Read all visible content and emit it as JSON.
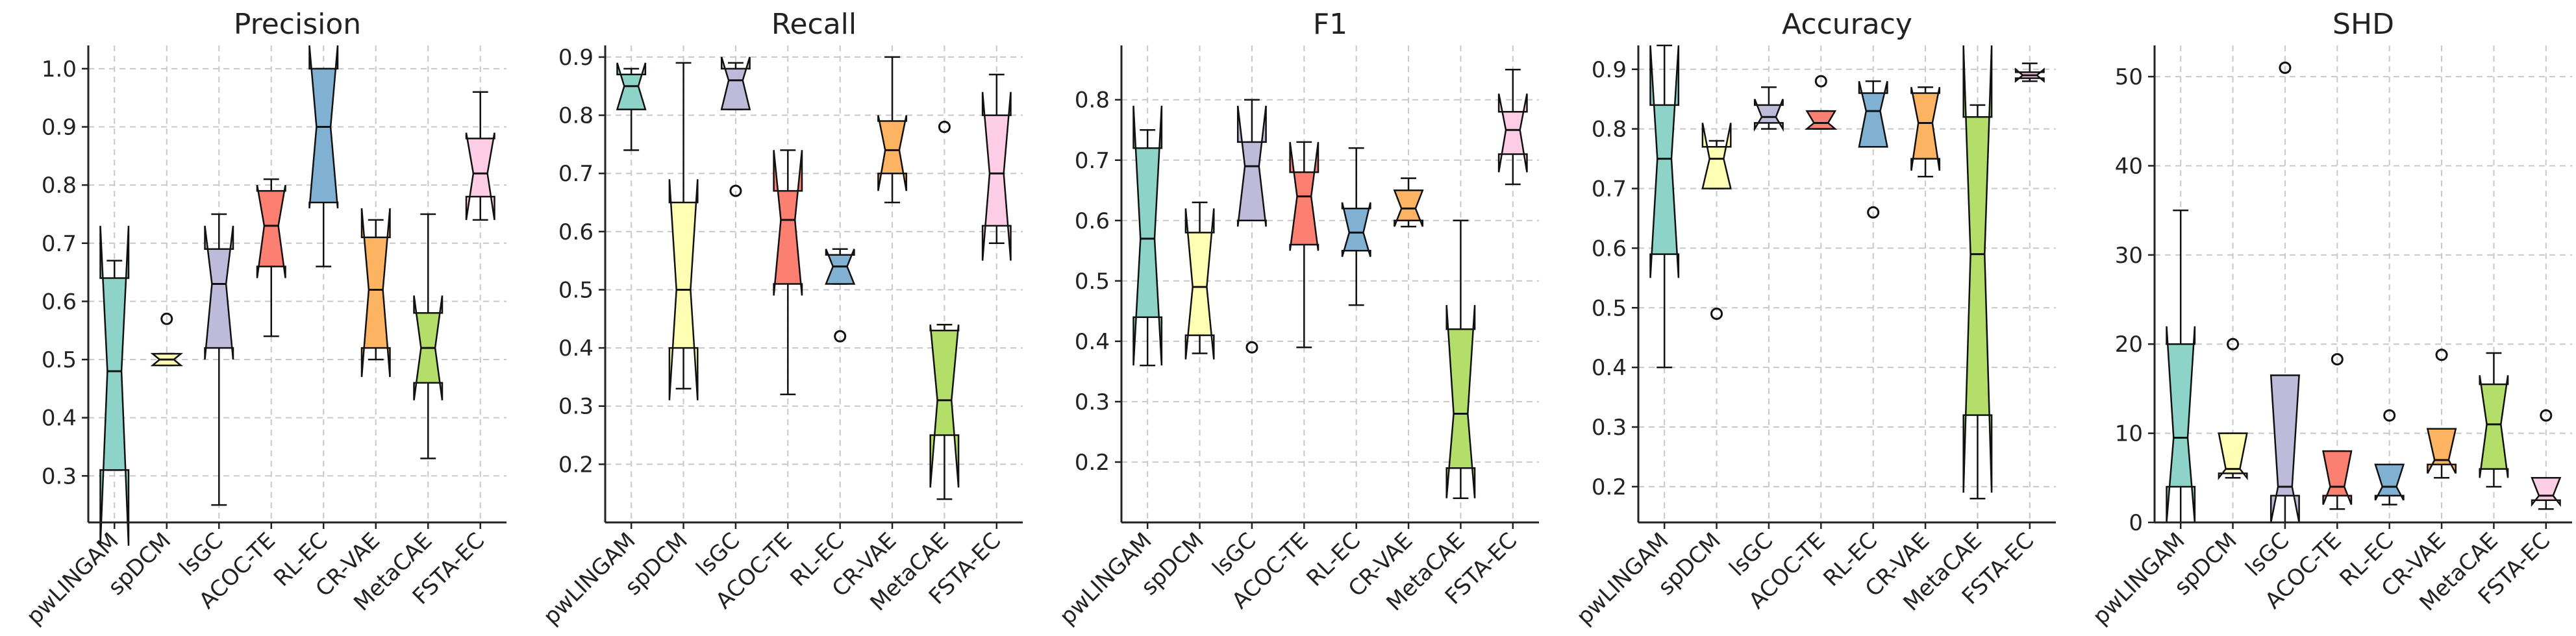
{
  "colors": {
    "pwLINGAM": "#8dd3c7",
    "spDCM": "#ffffb3",
    "lsGC": "#bebada",
    "ACOC-TE": "#fb8072",
    "RL-EC": "#80b1d3",
    "CR-VAE": "#fdb462",
    "MetaCAE": "#b3de69",
    "FSTA-EC": "#fccde5"
  },
  "chart_data": [
    {
      "type": "box",
      "title": "Precision",
      "categories": [
        "pwLINGAM",
        "spDCM",
        "lsGC",
        "ACOC-TE",
        "RL-EC",
        "CR-VAE",
        "MetaCAE",
        "FSTA-EC"
      ],
      "ylim": [
        0.22,
        1.04
      ],
      "yticks": [
        0.3,
        0.4,
        0.5,
        0.6,
        0.7,
        0.8,
        0.9,
        1.0
      ],
      "ytick_labels": [
        "0.3",
        "0.4",
        "0.5",
        "0.6",
        "0.7",
        "0.8",
        "0.9",
        "1.0"
      ],
      "grid": true,
      "boxes": [
        {
          "whislo": 0.31,
          "q1": 0.31,
          "med": 0.48,
          "q3": 0.64,
          "whishi": 0.67,
          "notch_lo": 0.18,
          "notch_hi": 0.73,
          "fliers": []
        },
        {
          "whislo": 0.49,
          "q1": 0.49,
          "med": 0.5,
          "q3": 0.51,
          "whishi": 0.51,
          "notch_lo": 0.49,
          "notch_hi": 0.51,
          "fliers": [
            0.57
          ]
        },
        {
          "whislo": 0.25,
          "q1": 0.52,
          "med": 0.63,
          "q3": 0.69,
          "whishi": 0.75,
          "notch_lo": 0.5,
          "notch_hi": 0.73,
          "fliers": []
        },
        {
          "whislo": 0.54,
          "q1": 0.66,
          "med": 0.73,
          "q3": 0.79,
          "whishi": 0.81,
          "notch_lo": 0.64,
          "notch_hi": 0.8,
          "fliers": []
        },
        {
          "whislo": 0.66,
          "q1": 0.77,
          "med": 0.9,
          "q3": 1.0,
          "whishi": 1.0,
          "notch_lo": 0.76,
          "notch_hi": 1.04,
          "fliers": []
        },
        {
          "whislo": 0.5,
          "q1": 0.52,
          "med": 0.62,
          "q3": 0.71,
          "whishi": 0.74,
          "notch_lo": 0.47,
          "notch_hi": 0.76,
          "fliers": []
        },
        {
          "whislo": 0.33,
          "q1": 0.46,
          "med": 0.52,
          "q3": 0.58,
          "whishi": 0.75,
          "notch_lo": 0.43,
          "notch_hi": 0.61,
          "fliers": []
        },
        {
          "whislo": 0.74,
          "q1": 0.78,
          "med": 0.82,
          "q3": 0.88,
          "whishi": 0.96,
          "notch_lo": 0.74,
          "notch_hi": 0.89,
          "fliers": []
        }
      ]
    },
    {
      "type": "box",
      "title": "Recall",
      "categories": [
        "pwLINGAM",
        "spDCM",
        "lsGC",
        "ACOC-TE",
        "RL-EC",
        "CR-VAE",
        "MetaCAE",
        "FSTA-EC"
      ],
      "ylim": [
        0.1,
        0.92
      ],
      "yticks": [
        0.2,
        0.3,
        0.4,
        0.5,
        0.6,
        0.7,
        0.8,
        0.9
      ],
      "ytick_labels": [
        "0.2",
        "0.3",
        "0.4",
        "0.5",
        "0.6",
        "0.7",
        "0.8",
        "0.9"
      ],
      "grid": true,
      "boxes": [
        {
          "whislo": 0.74,
          "q1": 0.81,
          "med": 0.85,
          "q3": 0.87,
          "whishi": 0.88,
          "notch_lo": 0.81,
          "notch_hi": 0.89,
          "fliers": []
        },
        {
          "whislo": 0.33,
          "q1": 0.4,
          "med": 0.5,
          "q3": 0.65,
          "whishi": 0.89,
          "notch_lo": 0.31,
          "notch_hi": 0.69,
          "fliers": []
        },
        {
          "whislo": 0.81,
          "q1": 0.81,
          "med": 0.86,
          "q3": 0.88,
          "whishi": 0.89,
          "notch_lo": 0.81,
          "notch_hi": 0.9,
          "fliers": [
            0.67
          ]
        },
        {
          "whislo": 0.32,
          "q1": 0.51,
          "med": 0.62,
          "q3": 0.67,
          "whishi": 0.74,
          "notch_lo": 0.49,
          "notch_hi": 0.74,
          "fliers": []
        },
        {
          "whislo": 0.51,
          "q1": 0.51,
          "med": 0.54,
          "q3": 0.56,
          "whishi": 0.57,
          "notch_lo": 0.51,
          "notch_hi": 0.57,
          "fliers": [
            0.42
          ]
        },
        {
          "whislo": 0.65,
          "q1": 0.7,
          "med": 0.74,
          "q3": 0.79,
          "whishi": 0.9,
          "notch_lo": 0.67,
          "notch_hi": 0.8,
          "fliers": []
        },
        {
          "whislo": 0.14,
          "q1": 0.25,
          "med": 0.31,
          "q3": 0.43,
          "whishi": 0.44,
          "notch_lo": 0.16,
          "notch_hi": 0.44,
          "fliers": [
            0.78
          ]
        },
        {
          "whislo": 0.58,
          "q1": 0.61,
          "med": 0.7,
          "q3": 0.8,
          "whishi": 0.87,
          "notch_lo": 0.55,
          "notch_hi": 0.84,
          "fliers": []
        }
      ]
    },
    {
      "type": "box",
      "title": "F1",
      "categories": [
        "pwLINGAM",
        "spDCM",
        "lsGC",
        "ACOC-TE",
        "RL-EC",
        "CR-VAE",
        "MetaCAE",
        "FSTA-EC"
      ],
      "ylim": [
        0.1,
        0.89
      ],
      "yticks": [
        0.2,
        0.3,
        0.4,
        0.5,
        0.6,
        0.7,
        0.8
      ],
      "ytick_labels": [
        "0.2",
        "0.3",
        "0.4",
        "0.5",
        "0.6",
        "0.7",
        "0.8"
      ],
      "grid": true,
      "boxes": [
        {
          "whislo": 0.36,
          "q1": 0.44,
          "med": 0.57,
          "q3": 0.72,
          "whishi": 0.75,
          "notch_lo": 0.36,
          "notch_hi": 0.79,
          "fliers": []
        },
        {
          "whislo": 0.38,
          "q1": 0.41,
          "med": 0.49,
          "q3": 0.58,
          "whishi": 0.63,
          "notch_lo": 0.37,
          "notch_hi": 0.62,
          "fliers": []
        },
        {
          "whislo": 0.6,
          "q1": 0.6,
          "med": 0.69,
          "q3": 0.73,
          "whishi": 0.8,
          "notch_lo": 0.59,
          "notch_hi": 0.79,
          "fliers": [
            0.39
          ]
        },
        {
          "whislo": 0.39,
          "q1": 0.56,
          "med": 0.64,
          "q3": 0.68,
          "whishi": 0.73,
          "notch_lo": 0.55,
          "notch_hi": 0.73,
          "fliers": []
        },
        {
          "whislo": 0.46,
          "q1": 0.55,
          "med": 0.58,
          "q3": 0.62,
          "whishi": 0.72,
          "notch_lo": 0.54,
          "notch_hi": 0.63,
          "fliers": []
        },
        {
          "whislo": 0.59,
          "q1": 0.6,
          "med": 0.62,
          "q3": 0.65,
          "whishi": 0.67,
          "notch_lo": 0.59,
          "notch_hi": 0.65,
          "fliers": []
        },
        {
          "whislo": 0.14,
          "q1": 0.19,
          "med": 0.28,
          "q3": 0.42,
          "whishi": 0.6,
          "notch_lo": 0.14,
          "notch_hi": 0.46,
          "fliers": []
        },
        {
          "whislo": 0.66,
          "q1": 0.71,
          "med": 0.75,
          "q3": 0.78,
          "whishi": 0.85,
          "notch_lo": 0.68,
          "notch_hi": 0.81,
          "fliers": []
        }
      ]
    },
    {
      "type": "box",
      "title": "Accuracy",
      "categories": [
        "pwLINGAM",
        "spDCM",
        "lsGC",
        "ACOC-TE",
        "RL-EC",
        "CR-VAE",
        "MetaCAE",
        "FSTA-EC"
      ],
      "ylim": [
        0.14,
        0.94
      ],
      "yticks": [
        0.2,
        0.3,
        0.4,
        0.5,
        0.6,
        0.7,
        0.8,
        0.9
      ],
      "ytick_labels": [
        "0.2",
        "0.3",
        "0.4",
        "0.5",
        "0.6",
        "0.7",
        "0.8",
        "0.9"
      ],
      "grid": true,
      "boxes": [
        {
          "whislo": 0.4,
          "q1": 0.59,
          "med": 0.75,
          "q3": 0.84,
          "whishi": 0.94,
          "notch_lo": 0.55,
          "notch_hi": 0.94,
          "fliers": []
        },
        {
          "whislo": 0.7,
          "q1": 0.7,
          "med": 0.75,
          "q3": 0.77,
          "whishi": 0.78,
          "notch_lo": 0.7,
          "notch_hi": 0.81,
          "fliers": [
            0.49
          ]
        },
        {
          "whislo": 0.8,
          "q1": 0.81,
          "med": 0.82,
          "q3": 0.84,
          "whishi": 0.87,
          "notch_lo": 0.8,
          "notch_hi": 0.85,
          "fliers": []
        },
        {
          "whislo": 0.8,
          "q1": 0.8,
          "med": 0.81,
          "q3": 0.83,
          "whishi": 0.83,
          "notch_lo": 0.8,
          "notch_hi": 0.83,
          "fliers": [
            0.88
          ]
        },
        {
          "whislo": 0.77,
          "q1": 0.77,
          "med": 0.83,
          "q3": 0.86,
          "whishi": 0.88,
          "notch_lo": 0.77,
          "notch_hi": 0.88,
          "fliers": [
            0.66
          ]
        },
        {
          "whislo": 0.72,
          "q1": 0.75,
          "med": 0.81,
          "q3": 0.86,
          "whishi": 0.87,
          "notch_lo": 0.73,
          "notch_hi": 0.87,
          "fliers": []
        },
        {
          "whislo": 0.18,
          "q1": 0.32,
          "med": 0.59,
          "q3": 0.82,
          "whishi": 0.84,
          "notch_lo": 0.19,
          "notch_hi": 0.94,
          "fliers": []
        },
        {
          "whislo": 0.88,
          "q1": 0.885,
          "med": 0.89,
          "q3": 0.895,
          "whishi": 0.91,
          "notch_lo": 0.88,
          "notch_hi": 0.9,
          "fliers": []
        }
      ]
    },
    {
      "type": "box",
      "title": "SHD",
      "categories": [
        "pwLINGAM",
        "spDCM",
        "lsGC",
        "ACOC-TE",
        "RL-EC",
        "CR-VAE",
        "MetaCAE",
        "FSTA-EC"
      ],
      "ylim": [
        0,
        53.5
      ],
      "yticks": [
        0,
        10,
        20,
        30,
        40,
        50
      ],
      "ytick_labels": [
        "0",
        "10",
        "20",
        "30",
        "40",
        "50"
      ],
      "grid": true,
      "boxes": [
        {
          "whislo": 0,
          "q1": 4,
          "med": 9.5,
          "q3": 20,
          "whishi": 35,
          "notch_lo": 0,
          "notch_hi": 22,
          "fliers": []
        },
        {
          "whislo": 5,
          "q1": 5.5,
          "med": 6,
          "q3": 10,
          "whishi": 10,
          "notch_lo": 5,
          "notch_hi": 10,
          "fliers": [
            20
          ]
        },
        {
          "whislo": 0,
          "q1": 3,
          "med": 4,
          "q3": 16.5,
          "whishi": 16.5,
          "notch_lo": 0,
          "notch_hi": 16.5,
          "fliers": [
            51
          ]
        },
        {
          "whislo": 1.5,
          "q1": 3,
          "med": 4,
          "q3": 8,
          "whishi": 8,
          "notch_lo": 2,
          "notch_hi": 8,
          "fliers": [
            18.3
          ]
        },
        {
          "whislo": 2,
          "q1": 3,
          "med": 4,
          "q3": 6.5,
          "whishi": 6.5,
          "notch_lo": 2.5,
          "notch_hi": 6.5,
          "fliers": [
            12
          ]
        },
        {
          "whislo": 5,
          "q1": 6.5,
          "med": 7,
          "q3": 10.5,
          "whishi": 10.5,
          "notch_lo": 5.5,
          "notch_hi": 10.5,
          "fliers": [
            18.8
          ]
        },
        {
          "whislo": 4,
          "q1": 6,
          "med": 11,
          "q3": 15.5,
          "whishi": 19,
          "notch_lo": 5,
          "notch_hi": 16.5,
          "fliers": []
        },
        {
          "whislo": 1.5,
          "q1": 2.5,
          "med": 3,
          "q3": 5,
          "whishi": 5,
          "notch_lo": 2,
          "notch_hi": 5,
          "fliers": [
            12
          ]
        }
      ]
    }
  ]
}
